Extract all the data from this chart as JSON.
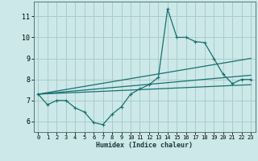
{
  "title": "",
  "xlabel": "Humidex (Indice chaleur)",
  "xlim": [
    -0.5,
    23.5
  ],
  "ylim": [
    5.5,
    11.7
  ],
  "xticks": [
    0,
    1,
    2,
    3,
    4,
    5,
    6,
    7,
    8,
    9,
    10,
    11,
    12,
    13,
    14,
    15,
    16,
    17,
    18,
    19,
    20,
    21,
    22,
    23
  ],
  "yticks": [
    6,
    7,
    8,
    9,
    10,
    11
  ],
  "background_color": "#cce8e8",
  "grid_color": "#aacccc",
  "line_color": "#1a7070",
  "main_curve_x": [
    0,
    1,
    2,
    3,
    4,
    5,
    6,
    7,
    8,
    9,
    10,
    11,
    12,
    13,
    14,
    15,
    16,
    17,
    18,
    19,
    20,
    21,
    22,
    23
  ],
  "main_curve_y": [
    7.3,
    6.8,
    7.0,
    7.0,
    6.65,
    6.45,
    5.95,
    5.85,
    6.35,
    6.7,
    7.3,
    7.55,
    7.75,
    8.1,
    11.35,
    10.0,
    10.0,
    9.8,
    9.75,
    9.0,
    8.25,
    7.8,
    8.0,
    8.0
  ],
  "trend_lines": [
    {
      "x": [
        0,
        23
      ],
      "y": [
        7.3,
        9.0
      ]
    },
    {
      "x": [
        0,
        23
      ],
      "y": [
        7.3,
        8.2
      ]
    },
    {
      "x": [
        0,
        23
      ],
      "y": [
        7.3,
        7.75
      ]
    }
  ]
}
